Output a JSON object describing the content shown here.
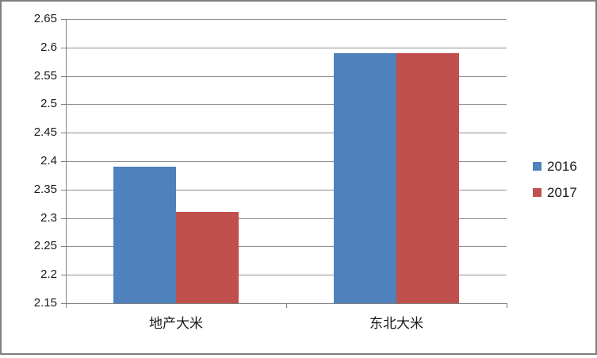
{
  "chart_data": {
    "type": "bar",
    "title": "",
    "xlabel": "",
    "ylabel": "",
    "categories": [
      "地产大米",
      "东北大米"
    ],
    "series": [
      {
        "name": "2016",
        "color": "#4F81BD",
        "values": [
          2.39,
          2.59
        ]
      },
      {
        "name": "2017",
        "color": "#C0504D",
        "values": [
          2.31,
          2.59
        ]
      }
    ],
    "ylim": [
      2.15,
      2.65
    ],
    "ytick_step": 0.05,
    "yticks": [
      "2.65",
      "2.6",
      "2.55",
      "2.5",
      "2.45",
      "2.4",
      "2.35",
      "2.3",
      "2.25",
      "2.2",
      "2.15"
    ],
    "grid": "horizontal",
    "legend_position": "right",
    "colors": {
      "gridline": "#8E8E8E",
      "axis": "#808080",
      "text": "#1A1A1A",
      "frame_border": "#7F7F7F",
      "background": "#FFFFFF"
    }
  }
}
